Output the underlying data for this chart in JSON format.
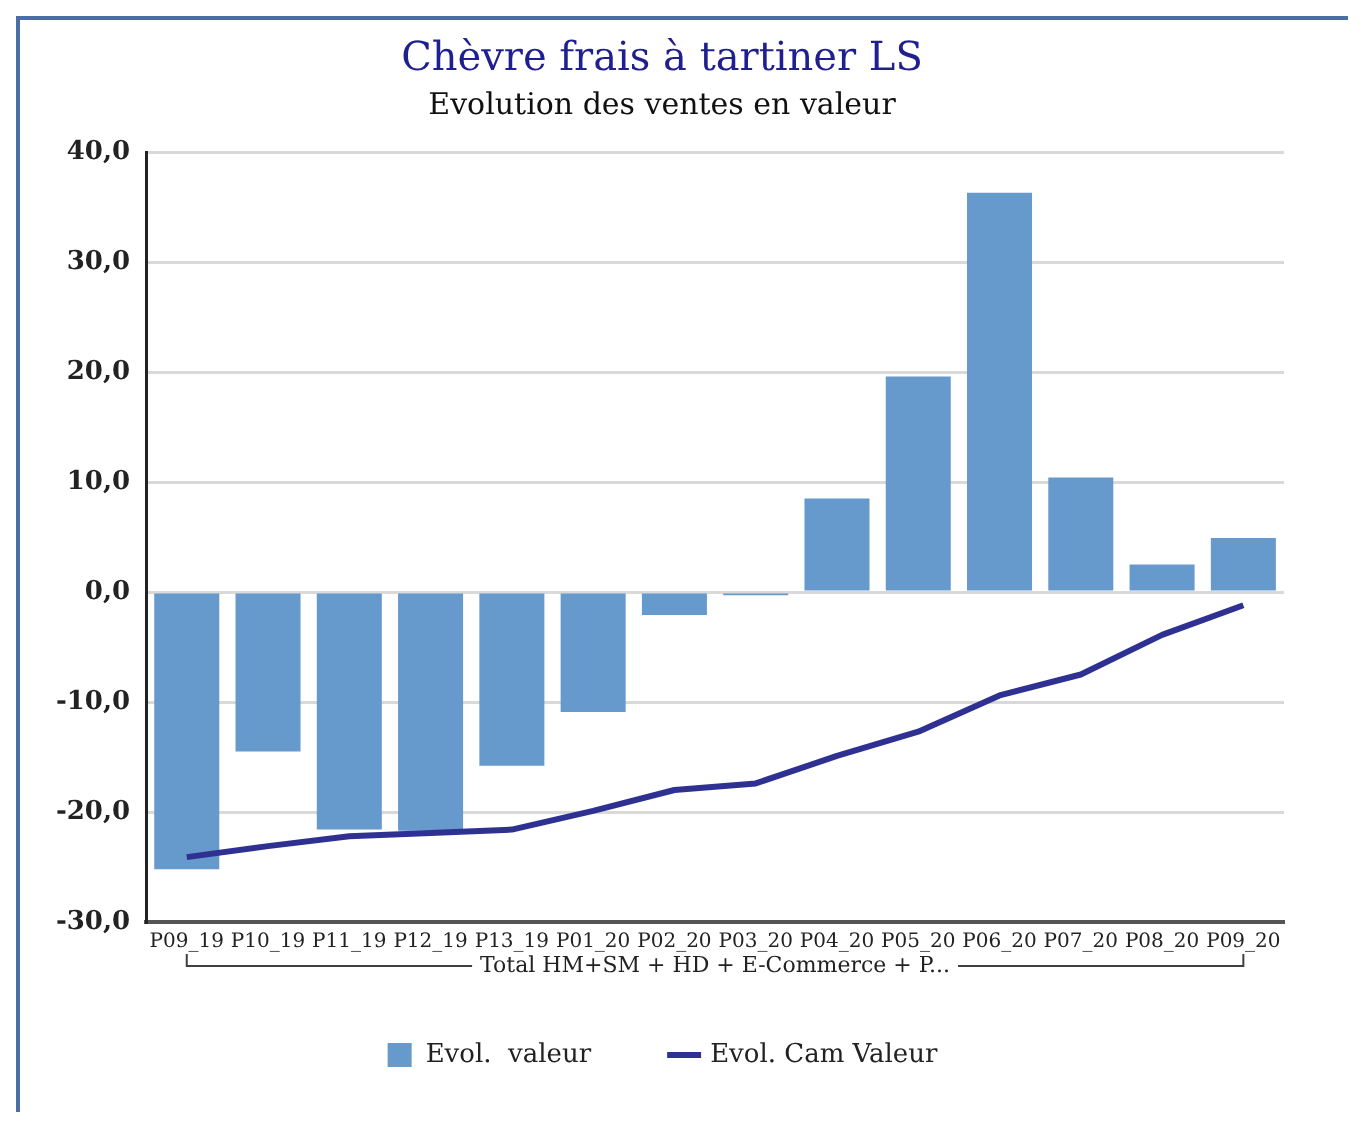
{
  "chart_data": {
    "type": "bar",
    "title": "Chèvre frais à tartiner LS",
    "subtitle": "Evolution des ventes en valeur",
    "categories": [
      "P09_19",
      "P10_19",
      "P11_19",
      "P12_19",
      "P13_19",
      "P01_20",
      "P02_20",
      "P03_20",
      "P04_20",
      "P05_20",
      "P06_20",
      "P07_20",
      "P08_20",
      "P09_20"
    ],
    "series": [
      {
        "name": "Evol.  valeur",
        "color": "#6699cc",
        "values": [
          -25.2,
          -14.5,
          -21.6,
          -21.7,
          -15.8,
          -10.9,
          -2.1,
          -0.3,
          8.5,
          19.6,
          36.3,
          10.4,
          2.5,
          4.9
        ]
      },
      {
        "name": "Evol. Cam Valeur",
        "type": "line",
        "color": "#2e3192",
        "values": [
          -24.1,
          -23.1,
          -22.2,
          -21.9,
          -21.6,
          -19.9,
          -18.0,
          -17.4,
          -14.9,
          -12.7,
          -9.4,
          -7.5,
          -3.9,
          -1.2
        ]
      }
    ],
    "ylim": [
      -30,
      40
    ],
    "yticks": [
      {
        "value": -30,
        "label": "-30,0"
      },
      {
        "value": -20,
        "label": "-20,0"
      },
      {
        "value": -10,
        "label": "-10,0"
      },
      {
        "value": 0,
        "label": "0,0"
      },
      {
        "value": 10,
        "label": "10,0"
      },
      {
        "value": 20,
        "label": "20,0"
      },
      {
        "value": 30,
        "label": "30,0"
      },
      {
        "value": 40,
        "label": "40,0"
      }
    ],
    "grid": "y",
    "legend": "bottom",
    "marker": "none",
    "line_style": "solid",
    "annotations": [
      "Total HM+SM + HD + E-Commerce + P..."
    ]
  }
}
